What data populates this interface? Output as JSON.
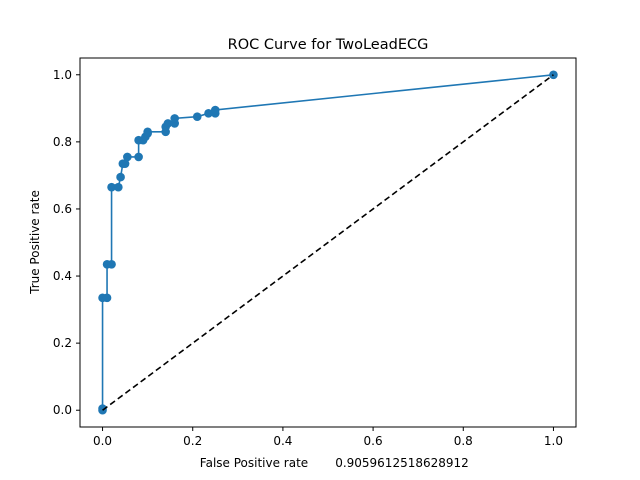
{
  "chart_data": {
    "type": "line",
    "title": "ROC Curve for TwoLeadECG",
    "xlabel": "False Positive rate",
    "xlabel_annotation": "0.9059612518628912",
    "ylabel": "True Positive rate",
    "xlim": [
      -0.05,
      1.05
    ],
    "ylim": [
      -0.05,
      1.05
    ],
    "xticks": [
      "0.0",
      "0.2",
      "0.4",
      "0.6",
      "0.8",
      "1.0"
    ],
    "yticks": [
      "0.0",
      "0.2",
      "0.4",
      "0.6",
      "0.8",
      "1.0"
    ],
    "grid": false,
    "colors": {
      "roc": "#1f77b4",
      "diagonal": "#000000"
    },
    "series": [
      {
        "style": "solid-with-markers",
        "x": [
          0.0,
          0.0,
          0.0,
          0.01,
          0.01,
          0.02,
          0.02,
          0.035,
          0.04,
          0.045,
          0.05,
          0.055,
          0.08,
          0.08,
          0.09,
          0.095,
          0.1,
          0.1,
          0.14,
          0.14,
          0.145,
          0.16,
          0.16,
          0.21,
          0.235,
          0.25,
          0.25,
          1.0
        ],
        "y": [
          0.0,
          0.005,
          0.335,
          0.335,
          0.435,
          0.435,
          0.665,
          0.665,
          0.695,
          0.735,
          0.735,
          0.755,
          0.755,
          0.805,
          0.805,
          0.815,
          0.825,
          0.83,
          0.83,
          0.845,
          0.855,
          0.855,
          0.87,
          0.875,
          0.885,
          0.885,
          0.895,
          1.0
        ]
      },
      {
        "style": "dashed",
        "x": [
          0.0,
          1.0
        ],
        "y": [
          0.0,
          1.0
        ]
      }
    ]
  }
}
